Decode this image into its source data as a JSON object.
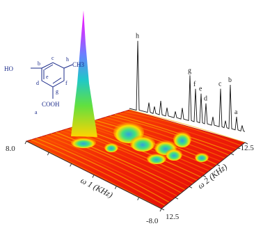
{
  "chart_data": {
    "type": "surface-3d",
    "axes": {
      "omega1": {
        "label": "ω 1 (KHz)",
        "tick_labels": [
          "8.0",
          "-8.0"
        ],
        "range": [
          8.0,
          -8.0
        ]
      },
      "omega2": {
        "label": "ω 2 (KHz)",
        "tick_labels": [
          "-12.5",
          "12.5"
        ],
        "range": [
          -12.5,
          12.5
        ]
      }
    },
    "spectrum_1d": {
      "peaks": [
        {
          "label": "h",
          "height": 0.95
        },
        {
          "label": "g",
          "height": 0.62
        },
        {
          "label": "f",
          "height": 0.45
        },
        {
          "label": "e",
          "height": 0.4
        },
        {
          "label": "d",
          "height": 0.28
        },
        {
          "label": "c",
          "height": 0.52
        },
        {
          "label": "b",
          "height": 0.6
        },
        {
          "label": "a",
          "height": 0.18
        }
      ]
    },
    "surface": {
      "dominant_peak_height": 1.0,
      "colormap": [
        "#e81010",
        "#ff5a00",
        "#ffd400",
        "#c8f000",
        "#30e070",
        "#20c0d0",
        "#5aa0ff",
        "#c040ff",
        "#ff00ff"
      ]
    }
  },
  "molecule": {
    "substituents": {
      "left": "HO",
      "right": "CH3",
      "bottom": "COOH"
    },
    "ring_letters": [
      "b",
      "c",
      "d",
      "e",
      "f",
      "g",
      "h",
      "a"
    ]
  }
}
